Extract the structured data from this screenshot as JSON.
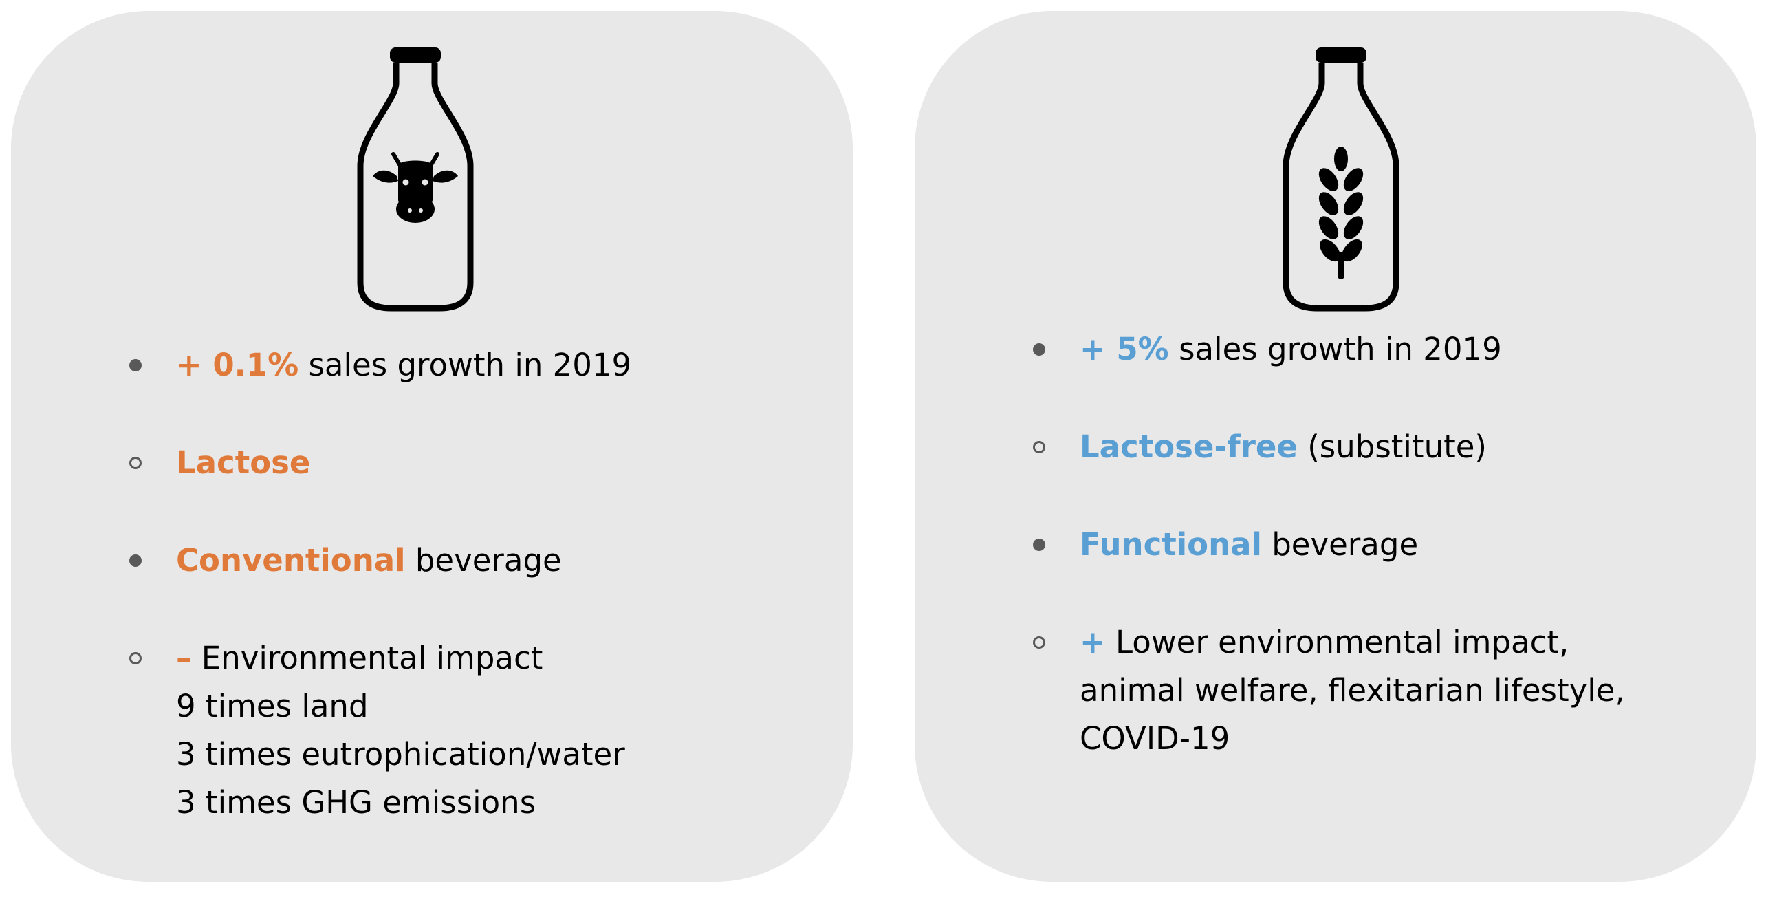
{
  "colors": {
    "card_background": "#e8e8e8",
    "bullet": "#595959",
    "dairy_accent": "#e07a3a",
    "plant_accent": "#5a9fd4"
  },
  "left_card": {
    "icon": "milk-bottle-cow-icon",
    "items": [
      {
        "highlight": "+ 0.1%",
        "text": " sales growth in 2019"
      },
      {
        "highlight": "Lactose",
        "text": ""
      },
      {
        "highlight": "Conventional",
        "text": " beverage"
      },
      {
        "highlight": "–",
        "text": " Environmental impact",
        "lines": [
          "9 times land",
          "3 times eutrophication/water",
          "3 times GHG emissions"
        ]
      }
    ]
  },
  "right_card": {
    "icon": "milk-bottle-wheat-icon",
    "items": [
      {
        "highlight": "+ 5%",
        "text": " sales growth in 2019"
      },
      {
        "highlight": "Lactose-free",
        "text": " (substitute)"
      },
      {
        "highlight": "Functional",
        "text": " beverage"
      },
      {
        "highlight": "+",
        "text": " Lower environmental impact,",
        "lines": [
          "animal welfare, flexitarian lifestyle,",
          "COVID-19"
        ]
      }
    ]
  }
}
